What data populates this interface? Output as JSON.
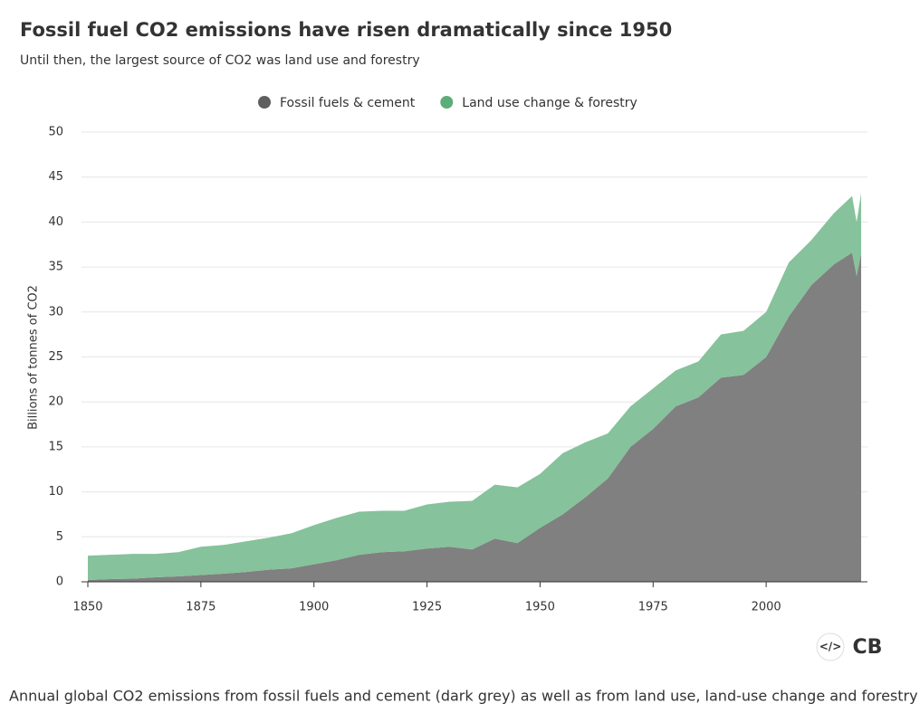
{
  "chart_data": {
    "type": "stacked-area",
    "title": "Fossil fuel CO2 emissions have risen dramatically since 1950",
    "subtitle": "Until then, the largest source of CO2 was land use and forestry",
    "y_label": "Billions of tonnes of CO2",
    "caption": "Annual global CO2 emissions from fossil fuels and cement (dark grey) as well as from land use, land-use change and forestry",
    "logo": "CB",
    "x": [
      1850,
      1855,
      1860,
      1865,
      1870,
      1875,
      1880,
      1885,
      1890,
      1895,
      1900,
      1905,
      1910,
      1915,
      1920,
      1925,
      1930,
      1935,
      1940,
      1945,
      1950,
      1955,
      1960,
      1965,
      1970,
      1975,
      1980,
      1985,
      1990,
      1995,
      2000,
      2005,
      2010,
      2015,
      2019,
      2020,
      2021
    ],
    "series": [
      {
        "name": "Fossil fuels & cement",
        "color": "#808080",
        "legend_color": "#5f5f5f",
        "values": [
          0.2,
          0.3,
          0.35,
          0.5,
          0.6,
          0.75,
          0.9,
          1.1,
          1.35,
          1.5,
          1.95,
          2.4,
          3.0,
          3.3,
          3.4,
          3.7,
          3.9,
          3.6,
          4.8,
          4.3,
          6.0,
          7.5,
          9.4,
          11.5,
          15.0,
          17.0,
          19.5,
          20.5,
          22.7,
          23.0,
          25.0,
          29.5,
          33.0,
          35.3,
          36.6,
          34.0,
          36.5
        ]
      },
      {
        "name": "Land use change & forestry",
        "color": "#86c29b",
        "legend_color": "#5cad78",
        "values": [
          2.7,
          2.7,
          2.75,
          2.6,
          2.7,
          3.15,
          3.2,
          3.4,
          3.55,
          3.9,
          4.35,
          4.7,
          4.8,
          4.6,
          4.5,
          4.9,
          5.0,
          5.4,
          6.0,
          6.2,
          6.0,
          6.8,
          6.1,
          5.0,
          4.5,
          4.5,
          4.0,
          4.0,
          4.8,
          4.9,
          5.0,
          6.0,
          5.0,
          5.7,
          6.3,
          6.0,
          6.7
        ]
      }
    ],
    "xlim": [
      1848.6,
      2022.4
    ],
    "xticks": [
      1850,
      1875,
      1900,
      1925,
      1950,
      1975,
      2000
    ],
    "ylim": [
      0,
      50
    ],
    "yticks": [
      0,
      5,
      10,
      15,
      20,
      25,
      30,
      35,
      40,
      45,
      50
    ],
    "grid": true
  }
}
